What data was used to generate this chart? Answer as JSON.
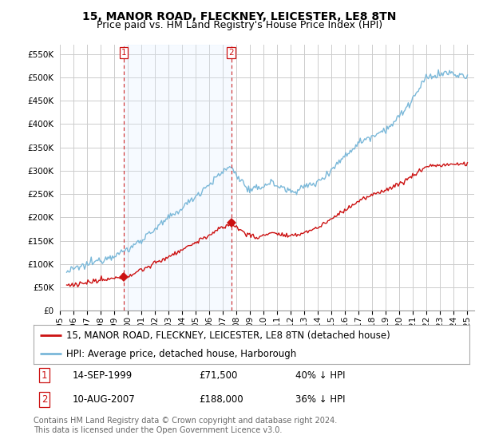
{
  "title": "15, MANOR ROAD, FLECKNEY, LEICESTER, LE8 8TN",
  "subtitle": "Price paid vs. HM Land Registry's House Price Index (HPI)",
  "ylabel_ticks": [
    "£0",
    "£50K",
    "£100K",
    "£150K",
    "£200K",
    "£250K",
    "£300K",
    "£350K",
    "£400K",
    "£450K",
    "£500K",
    "£550K"
  ],
  "ytick_values": [
    0,
    50000,
    100000,
    150000,
    200000,
    250000,
    300000,
    350000,
    400000,
    450000,
    500000,
    550000
  ],
  "ylim": [
    0,
    570000
  ],
  "xlim_start": 1995.3,
  "xlim_end": 2025.5,
  "xtick_years": [
    1995,
    1996,
    1997,
    1998,
    1999,
    2000,
    2001,
    2002,
    2003,
    2004,
    2005,
    2006,
    2007,
    2008,
    2009,
    2010,
    2011,
    2012,
    2013,
    2014,
    2015,
    2016,
    2017,
    2018,
    2019,
    2020,
    2021,
    2022,
    2023,
    2024,
    2025
  ],
  "hpi_color": "#7ab8d9",
  "price_color": "#cc1111",
  "vline_color": "#cc1111",
  "shade_color": "#ddeeff",
  "background_color": "#ffffff",
  "grid_color": "#cccccc",
  "legend_label_price": "15, MANOR ROAD, FLECKNEY, LEICESTER, LE8 8TN (detached house)",
  "legend_label_hpi": "HPI: Average price, detached house, Harborough",
  "sale1_label": "1",
  "sale1_date": "14-SEP-1999",
  "sale1_price": "£71,500",
  "sale1_note": "40% ↓ HPI",
  "sale1_year": 1999.71,
  "sale1_value": 71500,
  "sale2_label": "2",
  "sale2_date": "10-AUG-2007",
  "sale2_price": "£188,000",
  "sale2_note": "36% ↓ HPI",
  "sale2_year": 2007.61,
  "sale2_value": 188000,
  "footer": "Contains HM Land Registry data © Crown copyright and database right 2024.\nThis data is licensed under the Open Government Licence v3.0.",
  "title_fontsize": 10,
  "subtitle_fontsize": 9,
  "tick_fontsize": 7.5,
  "legend_fontsize": 8.5,
  "footer_fontsize": 7
}
